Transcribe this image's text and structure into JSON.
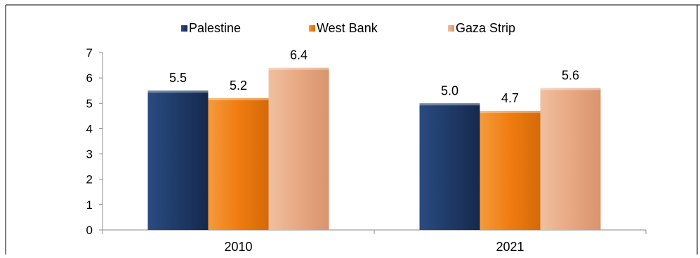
{
  "chart_data": {
    "type": "bar",
    "categories": [
      "2010",
      "2021"
    ],
    "series": [
      {
        "name": "Palestine",
        "values": [
          5.5,
          5.0
        ],
        "color": "#1f3a68"
      },
      {
        "name": "West Bank",
        "values": [
          5.2,
          4.7
        ],
        "color": "#f07c10"
      },
      {
        "name": "Gaza Strip",
        "values": [
          6.4,
          5.6
        ],
        "color": "#e8a882"
      }
    ],
    "value_labels": [
      [
        "5.5",
        "5.0"
      ],
      [
        "5.2",
        "4.7"
      ],
      [
        "6.4",
        "5.6"
      ]
    ],
    "ylim": [
      0,
      7
    ],
    "yticks": [
      "0",
      "1",
      "2",
      "3",
      "4",
      "5",
      "6",
      "7"
    ],
    "legend_position": "top-center",
    "grid": false
  }
}
